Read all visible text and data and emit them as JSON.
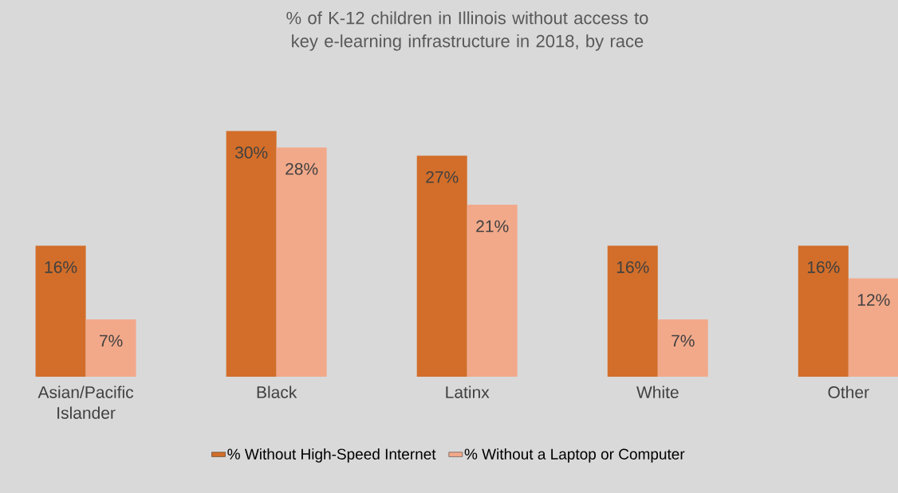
{
  "chart_data": {
    "type": "bar",
    "title": "% of K-12 children in Illinois without access to key e-learning infrastructure in 2018, by race",
    "categories": [
      "Asian/Pacific Islander",
      "Black",
      "Latinx",
      "White",
      "Other"
    ],
    "series": [
      {
        "name": "% Without High-Speed Internet",
        "color": "#d26e2a",
        "values": [
          16,
          30,
          27,
          16,
          16
        ],
        "value_labels": [
          "16%",
          "30%",
          "27%",
          "16%",
          "16%"
        ]
      },
      {
        "name": "% Without a Laptop or Computer",
        "color": "#f2a98a",
        "values": [
          7,
          28,
          21,
          7,
          12
        ],
        "value_labels": [
          "7%",
          "28%",
          "21%",
          "7%",
          "12%"
        ]
      }
    ],
    "legend": "bottom"
  }
}
